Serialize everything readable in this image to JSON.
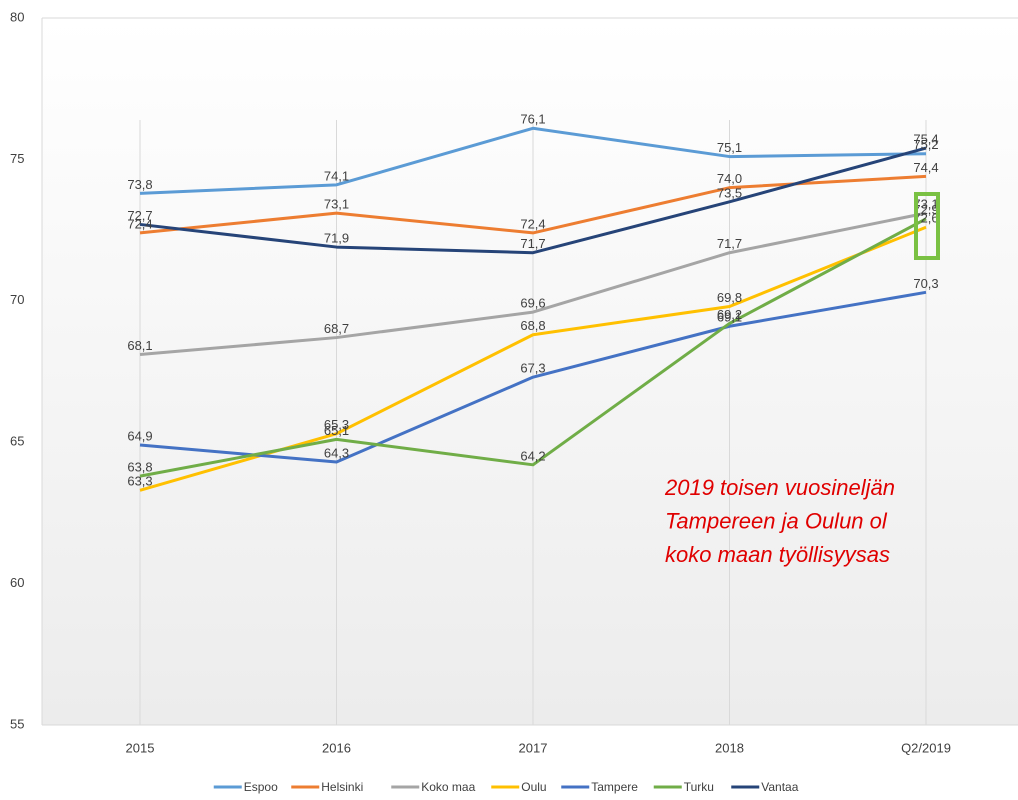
{
  "chart_data": {
    "type": "line",
    "categories": [
      "2015",
      "2016",
      "2017",
      "2018",
      "Q2/2019"
    ],
    "ylim": [
      55,
      80
    ],
    "yticks": [
      55,
      60,
      65,
      70,
      75,
      80
    ],
    "grid": true,
    "legend": "bottom",
    "series": [
      {
        "name": "Espoo",
        "color": "#5b9bd5",
        "values": [
          73.8,
          74.1,
          76.1,
          75.1,
          75.2
        ],
        "value_labels": [
          "73,8",
          "74,1",
          "76,1",
          "75,1",
          "75,2"
        ]
      },
      {
        "name": "Helsinki",
        "color": "#ed7d31",
        "values": [
          72.4,
          73.1,
          72.4,
          74.0,
          74.4
        ],
        "value_labels": [
          "72,4",
          "73,1",
          "72,4",
          "74,0",
          "74,4"
        ]
      },
      {
        "name": "Koko maa",
        "color": "#a5a5a5",
        "values": [
          68.1,
          68.7,
          69.6,
          71.7,
          73.1
        ],
        "value_labels": [
          "68,1",
          "68,7",
          "69,6",
          "71,7",
          "73,1"
        ]
      },
      {
        "name": "Oulu",
        "color": "#ffc000",
        "values": [
          63.3,
          65.3,
          68.8,
          69.8,
          72.6
        ],
        "value_labels": [
          "63,3",
          "65,3",
          "68,8",
          "69,8",
          "72,6"
        ]
      },
      {
        "name": "Tampere",
        "color": "#4472c4",
        "values": [
          64.9,
          64.3,
          67.3,
          69.1,
          70.3
        ],
        "value_labels": [
          "64,9",
          "64,3",
          "67,3",
          "69,1",
          "70,3"
        ]
      },
      {
        "name": "Turku",
        "color": "#70ad47",
        "values": [
          63.8,
          65.1,
          64.2,
          69.2,
          72.9
        ],
        "value_labels": [
          "63,8",
          "65,1",
          "64,2",
          "69,2",
          "72,9"
        ]
      },
      {
        "name": "Vantaa",
        "color": "#264478",
        "values": [
          72.7,
          71.9,
          71.7,
          73.5,
          75.4
        ],
        "value_labels": [
          "72,7",
          "71,9",
          "71,7",
          "73,5",
          "75,4"
        ]
      }
    ],
    "annotation": [
      "2019 toisen vuosineljän",
      "Tampereen ja Oulun ol",
      "koko maan työllisyysas"
    ]
  }
}
